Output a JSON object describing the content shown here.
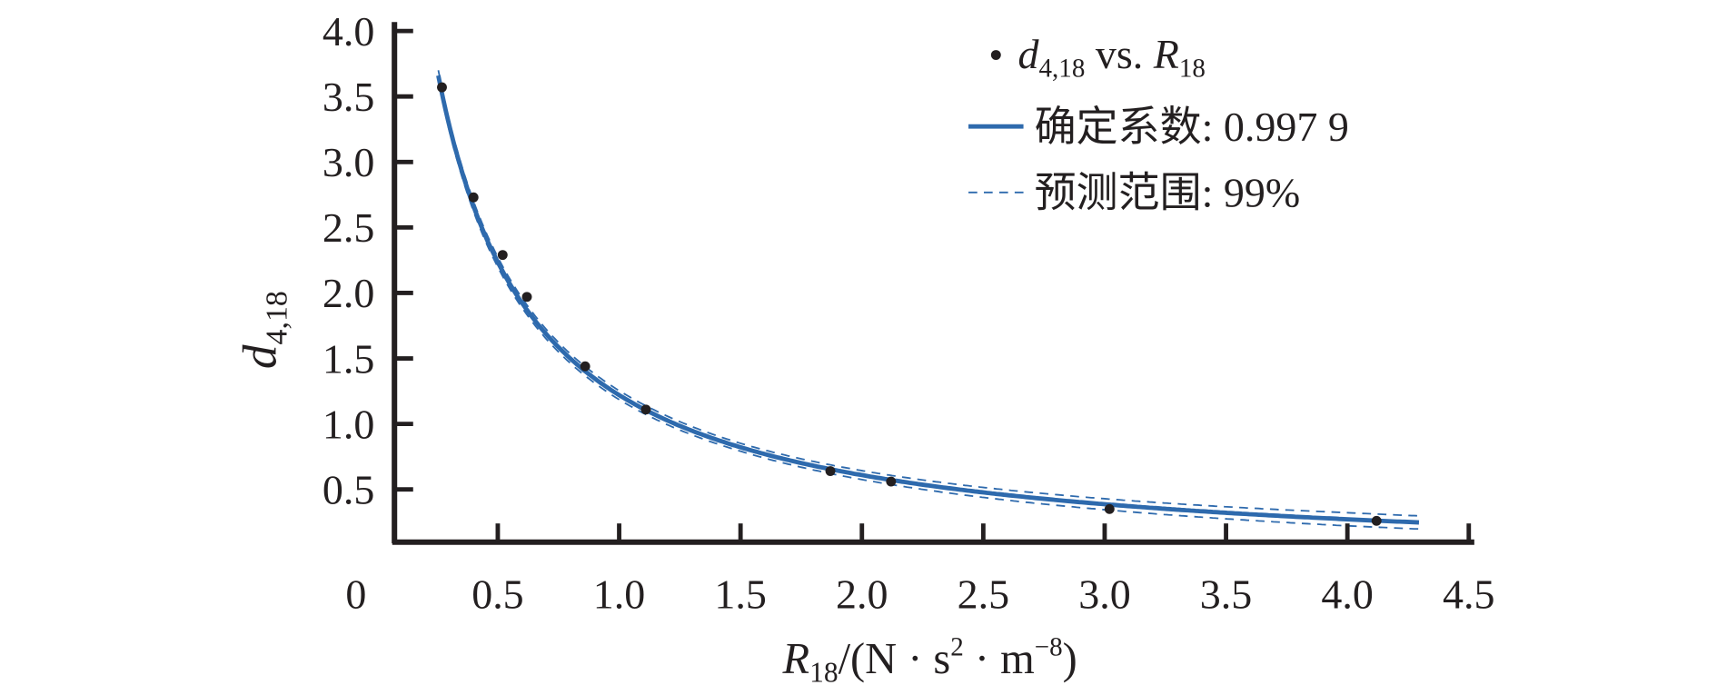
{
  "chart_data": {
    "type": "scatter",
    "title": "",
    "xlabel": {
      "var": "R",
      "var_sub": "18",
      "unit_open": "/(N · s",
      "sup1": "2",
      "mid": " · m",
      "sup2": "−8",
      "close": ")"
    },
    "ylabel": {
      "var": "d",
      "var_sub": "4,18"
    },
    "xlim": [
      0,
      4.5
    ],
    "ylim": [
      0,
      4.0
    ],
    "x_ticks": [
      "0",
      "0.5",
      "1.0",
      "1.5",
      "2.0",
      "2.5",
      "3.0",
      "3.5",
      "4.0",
      "4.5"
    ],
    "y_ticks": [
      "0.5",
      "1.0",
      "1.5",
      "2.0",
      "2.5",
      "3.0",
      "3.5",
      "4.0"
    ],
    "grid": false,
    "legend_position": "top-right",
    "series": [
      {
        "name": "d4,18 vs. R18",
        "kind": "points",
        "color": "#231f20",
        "x": [
          0.27,
          0.4,
          0.52,
          0.62,
          0.86,
          1.11,
          1.87,
          2.12,
          3.02,
          4.12
        ],
        "y": [
          3.57,
          2.73,
          2.29,
          1.97,
          1.44,
          1.11,
          0.64,
          0.56,
          0.35,
          0.26
        ]
      },
      {
        "name": "确定系数: 0.997 9",
        "kind": "fit",
        "color": "#2e6aad",
        "r_squared": 0.9979
      },
      {
        "name": "预测范围: 99%",
        "kind": "prediction-band",
        "color": "#2e6aad",
        "level": 0.99
      }
    ],
    "legend": {
      "points": {
        "d": "d",
        "d_sub": "4,18",
        "vs": " vs. ",
        "r": "R",
        "r_sub": "18"
      },
      "fit": "确定系数: 0.997 9",
      "band": "预测范围: 99%"
    }
  }
}
